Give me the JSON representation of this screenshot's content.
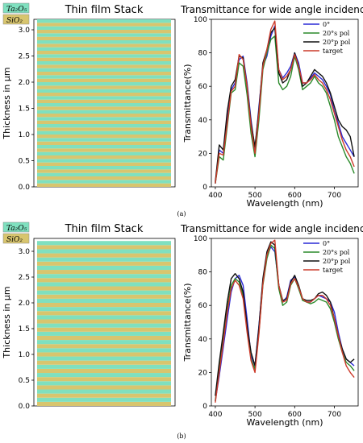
{
  "panels": [
    {
      "label": "(a)",
      "stack_chart": {
        "type": "heatmap",
        "title": "Thin film Stack",
        "ylabel": "Thickness in μm",
        "ylim": [
          0,
          3.2
        ],
        "yticks": [
          "0.0",
          "0.5",
          "1.0",
          "1.5",
          "2.0",
          "2.5",
          "3.0"
        ],
        "ytick_values": [
          0,
          0.5,
          1.0,
          1.5,
          2.0,
          2.5,
          3.0
        ],
        "total_thickness": 3.2,
        "legend": [
          {
            "label": "Ta₂O₅",
            "color": "#7fe0bf"
          },
          {
            "label": "SiO₂",
            "color": "#d8c56e"
          }
        ],
        "layer_colors": {
          "ta2o5": "#7fe0bf",
          "sio2": "#d8c56e"
        },
        "layer_count": 48
      },
      "chart_data": {
        "type": "line",
        "title": "Transmittance for wide angle incidence",
        "xlabel": "Wavelength (nm)",
        "ylabel": "Transmittance(%)",
        "xlim": [
          390,
          760
        ],
        "ylim": [
          0,
          100
        ],
        "xticks": [
          400,
          500,
          600,
          700
        ],
        "yticks": [
          0,
          20,
          40,
          60,
          80,
          100
        ],
        "legend_position": "top-right",
        "x": [
          400,
          410,
          420,
          430,
          440,
          450,
          460,
          470,
          480,
          490,
          500,
          510,
          520,
          530,
          540,
          550,
          560,
          570,
          580,
          590,
          600,
          610,
          620,
          630,
          640,
          650,
          660,
          670,
          680,
          690,
          700,
          710,
          720,
          730,
          740,
          750
        ],
        "series": [
          {
            "name": "0°",
            "color": "#2a2ad6",
            "values": [
              2,
              22,
              20,
              40,
              58,
              62,
              76,
              78,
              62,
              40,
              22,
              48,
              72,
              78,
              90,
              96,
              70,
              65,
              68,
              72,
              80,
              74,
              62,
              62,
              65,
              68,
              66,
              64,
              60,
              55,
              45,
              38,
              30,
              26,
              22,
              18
            ]
          },
          {
            "name": "20°s pol",
            "color": "#2a8a2a",
            "values": [
              2,
              18,
              16,
              36,
              56,
              58,
              74,
              72,
              55,
              32,
              18,
              40,
              70,
              80,
              88,
              90,
              62,
              58,
              60,
              66,
              78,
              70,
              58,
              60,
              62,
              66,
              62,
              60,
              56,
              48,
              40,
              30,
              24,
              18,
              14,
              8
            ]
          },
          {
            "name": "20°p pol",
            "color": "#111111",
            "values": [
              3,
              25,
              22,
              45,
              60,
              64,
              78,
              77,
              60,
              38,
              24,
              46,
              74,
              82,
              92,
              95,
              68,
              62,
              64,
              70,
              80,
              72,
              60,
              62,
              66,
              70,
              68,
              66,
              62,
              56,
              48,
              40,
              36,
              34,
              30,
              18
            ]
          },
          {
            "name": "target",
            "color": "#cc3a2a",
            "values": [
              2,
              20,
              19,
              38,
              57,
              60,
              79,
              76,
              60,
              36,
              20,
              44,
              72,
              82,
              94,
              99,
              70,
              64,
              66,
              70,
              79,
              72,
              62,
              62,
              64,
              67,
              64,
              62,
              58,
              52,
              44,
              36,
              28,
              22,
              18,
              12
            ]
          }
        ]
      }
    },
    {
      "label": "(b)",
      "stack_chart": {
        "type": "heatmap",
        "title": "Thin film Stack",
        "ylabel": "Thickness in μm",
        "ylim": [
          0,
          3.25
        ],
        "yticks": [
          "0.0",
          "0.5",
          "1.0",
          "1.5",
          "2.0",
          "2.5",
          "3.0"
        ],
        "ytick_values": [
          0,
          0.5,
          1.0,
          1.5,
          2.0,
          2.5,
          3.0
        ],
        "total_thickness": 3.2,
        "legend": [
          {
            "label": "Ta₂O₅",
            "color": "#7fe0bf"
          },
          {
            "label": "SiO₂",
            "color": "#d8c56e"
          }
        ],
        "layer_colors": {
          "ta2o5": "#7fe0bf",
          "sio2": "#d8c56e"
        },
        "layer_count": 40
      },
      "chart_data": {
        "type": "line",
        "title": "Transmittance for wide angle incidence",
        "xlabel": "Wavelength (nm)",
        "ylabel": "Transmittance(%)",
        "xlim": [
          390,
          760
        ],
        "ylim": [
          0,
          100
        ],
        "xticks": [
          400,
          500,
          600,
          700
        ],
        "yticks": [
          0,
          20,
          40,
          60,
          80,
          100
        ],
        "legend_position": "top-right",
        "x": [
          400,
          410,
          420,
          430,
          440,
          450,
          460,
          470,
          480,
          490,
          500,
          510,
          520,
          530,
          540,
          550,
          560,
          570,
          580,
          590,
          600,
          610,
          620,
          630,
          640,
          650,
          660,
          670,
          680,
          690,
          700,
          710,
          720,
          730,
          740,
          750
        ],
        "series": [
          {
            "name": "0°",
            "color": "#2a2ad6",
            "values": [
              3,
              18,
              35,
              52,
              68,
              76,
              78,
              72,
              52,
              30,
              24,
              48,
              75,
              90,
              95,
              92,
              72,
              62,
              65,
              75,
              77,
              70,
              64,
              62,
              62,
              64,
              66,
              65,
              64,
              62,
              56,
              44,
              34,
              28,
              26,
              24
            ]
          },
          {
            "name": "20°s pol",
            "color": "#2a8a2a",
            "values": [
              3,
              22,
              40,
              58,
              72,
              76,
              74,
              66,
              46,
              28,
              22,
              44,
              72,
              88,
              96,
              94,
              70,
              60,
              62,
              72,
              76,
              70,
              63,
              62,
              61,
              62,
              64,
              63,
              62,
              58,
              50,
              40,
              32,
              26,
              24,
              21
            ]
          },
          {
            "name": "20°p pol",
            "color": "#111111",
            "values": [
              6,
              26,
              44,
              62,
              76,
              79,
              76,
              68,
              48,
              32,
              24,
              47,
              76,
              92,
              98,
              96,
              72,
              63,
              64,
              74,
              78,
              72,
              64,
              63,
              63,
              64,
              67,
              68,
              66,
              62,
              52,
              42,
              34,
              28,
              26,
              28
            ]
          },
          {
            "name": "target",
            "color": "#cc3a2a",
            "values": [
              2,
              20,
              38,
              56,
              70,
              75,
              72,
              64,
              44,
              27,
              20,
              43,
              73,
              90,
              97,
              99,
              72,
              62,
              63,
              73,
              76,
              71,
              64,
              62,
              62,
              64,
              66,
              66,
              64,
              60,
              52,
              42,
              32,
              24,
              20,
              17
            ]
          }
        ]
      }
    }
  ]
}
